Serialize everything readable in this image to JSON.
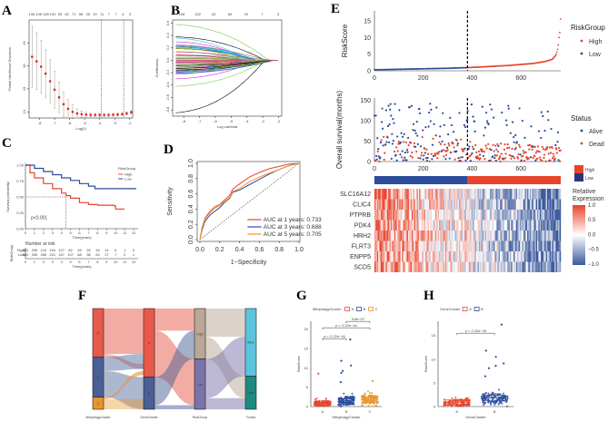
{
  "panels": {
    "A": "A",
    "B": "B",
    "C": "C",
    "D": "D",
    "E": "E",
    "F": "F",
    "G": "G",
    "H": "H"
  },
  "chart_data": [
    {
      "id": "A",
      "type": "line",
      "title": "",
      "xlabel": "Log(λ)",
      "ylabel": "Partial Likelihood Deviance",
      "xlim": [
        -8.7,
        -1.8
      ],
      "ylim": [
        9.2,
        22
      ],
      "x_ticks": [
        -8,
        -7,
        -6,
        -5,
        -4,
        -3,
        -2
      ],
      "y_ticks": [
        10,
        13,
        16,
        19
      ],
      "top_ticks": [
        "108",
        "108",
        "108",
        "100",
        "95",
        "82",
        "71",
        "58",
        "35",
        "19",
        "11",
        "7",
        "7",
        "4",
        "3"
      ],
      "vlines": [
        -3.9,
        -2.4
      ],
      "series": [
        {
          "name": "deviance",
          "color": "#e8201c",
          "x": [
            -8.5,
            -8.2,
            -7.9,
            -7.6,
            -7.3,
            -7.0,
            -6.7,
            -6.4,
            -6.1,
            -5.8,
            -5.5,
            -5.2,
            -4.9,
            -4.6,
            -4.3,
            -4.0,
            -3.7,
            -3.4,
            -3.1,
            -2.8,
            -2.5,
            -2.2,
            -1.9
          ],
          "y": [
            17.2,
            16.6,
            15.9,
            15.0,
            14.0,
            12.9,
            11.9,
            11.0,
            10.4,
            10.0,
            9.8,
            9.7,
            9.65,
            9.6,
            9.6,
            9.6,
            9.6,
            9.6,
            9.62,
            9.65,
            9.7,
            9.8,
            9.95
          ],
          "err": [
            4.0,
            3.7,
            3.4,
            3.1,
            2.8,
            2.4,
            2.0,
            1.6,
            1.2,
            0.9,
            0.6,
            0.4,
            0.3,
            0.25,
            0.2,
            0.2,
            0.2,
            0.2,
            0.2,
            0.2,
            0.2,
            0.2,
            0.2
          ]
        }
      ]
    },
    {
      "id": "B",
      "type": "line",
      "title": "",
      "xlabel": "Log Lambda",
      "ylabel": "Coefficients",
      "xlim": [
        -8.7,
        -1.8
      ],
      "ylim": [
        -0.9,
        0.65
      ],
      "x_ticks": [
        -8,
        -7,
        -6,
        -5,
        -4,
        -3,
        -2
      ],
      "y_ticks": [
        -0.8,
        -0.6,
        -0.4,
        -0.2,
        0.0,
        0.2,
        0.4,
        0.6
      ],
      "top_ticks": [
        "108",
        "102",
        "82",
        "60",
        "23",
        "7",
        "3"
      ],
      "series_count": 60,
      "series": [
        {
          "name": "path-1",
          "color": "#7ccf3b",
          "start": 0.58
        },
        {
          "name": "path-2",
          "color": "#000000",
          "start": 0.38
        },
        {
          "name": "path-3",
          "color": "#22c4e0",
          "start": 0.36
        },
        {
          "name": "path-4",
          "color": "#d62ad6",
          "start": 0.3
        },
        {
          "name": "path-5",
          "color": "#e33a7a",
          "start": 0.25
        },
        {
          "name": "path-6",
          "color": "#3aa84b",
          "start": 0.2
        },
        {
          "name": "path-7",
          "color": "#2b55e0",
          "start": -0.18
        },
        {
          "name": "path-8",
          "color": "#d62ad6",
          "start": -0.3
        },
        {
          "name": "path-9",
          "color": "#7ccf3b",
          "start": -0.42
        },
        {
          "name": "path-10",
          "color": "#000000",
          "start": -0.85
        }
      ]
    },
    {
      "id": "C",
      "type": "line",
      "title": "",
      "xlabel": "Time(years)",
      "ylabel": "Survival probability",
      "xlim": [
        0,
        12.5
      ],
      "ylim": [
        0,
        1
      ],
      "x_ticks": [
        0,
        1,
        2,
        3,
        4,
        5,
        6,
        7,
        8,
        9,
        10,
        11,
        12
      ],
      "y_ticks": [
        "0.00",
        "0.25",
        "0.50",
        "0.75",
        "1.00"
      ],
      "legend_title": "RiskGroup",
      "annotation": "p<0.001",
      "median_line": {
        "x": 4.5,
        "y": 0.5
      },
      "series": [
        {
          "name": "High",
          "color": "#e8442c",
          "x": [
            0,
            0.5,
            1,
            2,
            3,
            4,
            4.5,
            5,
            6,
            7,
            8,
            9,
            9.8,
            10,
            11
          ],
          "y": [
            1,
            0.88,
            0.8,
            0.71,
            0.63,
            0.56,
            0.52,
            0.48,
            0.41,
            0.38,
            0.37,
            0.37,
            0.36,
            0.31,
            0.31
          ]
        },
        {
          "name": "Low",
          "color": "#2c4c9c",
          "x": [
            0,
            1,
            2,
            3,
            4,
            5,
            6,
            7,
            7.7,
            8,
            9,
            10,
            11,
            12.3
          ],
          "y": [
            1,
            0.95,
            0.9,
            0.85,
            0.8,
            0.76,
            0.71,
            0.67,
            0.63,
            0.63,
            0.63,
            0.63,
            0.63,
            0.63
          ]
        }
      ],
      "risk_table": {
        "title": "Number at risk",
        "ylabel": "RiskGroup",
        "xlabel": "Time(years)",
        "rows": [
          {
            "group": "High",
            "color": "#e8442c",
            "values": [
              "381",
              "290",
              "215",
              "164",
              "127",
              "82",
              "45",
              "25",
              "16",
              "14",
              "6",
              "1",
              "0"
            ]
          },
          {
            "group": "Low",
            "color": "#2c4c9c",
            "values": [
              "382",
              "335",
              "266",
              "201",
              "157",
              "107",
              "68",
              "38",
              "25",
              "17",
              "7",
              "2",
              "1"
            ]
          }
        ]
      }
    },
    {
      "id": "D",
      "type": "line",
      "title": "",
      "xlabel": "1−Specificity",
      "ylabel": "Sensitivity",
      "xlim": [
        0,
        1
      ],
      "ylim": [
        0,
        1
      ],
      "x_ticks": [
        "0.0",
        "0.2",
        "0.4",
        "0.6",
        "0.8",
        "1.0"
      ],
      "y_ticks": [
        "0.0",
        "0.2",
        "0.4",
        "0.6",
        "0.8",
        "1.0"
      ],
      "series": [
        {
          "name": "AUC at 1 years: 0.733",
          "color": "#e8442c",
          "x": [
            0,
            0.02,
            0.05,
            0.1,
            0.15,
            0.2,
            0.25,
            0.3,
            0.33,
            0.4,
            0.5,
            0.6,
            0.7,
            0.8,
            0.9,
            1
          ],
          "y": [
            0,
            0.15,
            0.28,
            0.37,
            0.43,
            0.46,
            0.52,
            0.58,
            0.66,
            0.73,
            0.82,
            0.88,
            0.93,
            0.96,
            0.99,
            1
          ]
        },
        {
          "name": "AUC at 3 years: 0.688",
          "color": "#2c4c9c",
          "x": [
            0,
            0.02,
            0.05,
            0.1,
            0.15,
            0.2,
            0.25,
            0.3,
            0.33,
            0.4,
            0.5,
            0.6,
            0.7,
            0.8,
            0.9,
            1
          ],
          "y": [
            0,
            0.12,
            0.24,
            0.32,
            0.37,
            0.42,
            0.49,
            0.54,
            0.62,
            0.65,
            0.72,
            0.79,
            0.86,
            0.92,
            0.97,
            1
          ]
        },
        {
          "name": "AUC at 5 years: 0.705",
          "color": "#f0952a",
          "x": [
            0,
            0.02,
            0.05,
            0.1,
            0.15,
            0.2,
            0.25,
            0.3,
            0.33,
            0.4,
            0.5,
            0.6,
            0.7,
            0.8,
            0.9,
            1
          ],
          "y": [
            0,
            0.14,
            0.27,
            0.35,
            0.41,
            0.45,
            0.5,
            0.55,
            0.63,
            0.67,
            0.76,
            0.82,
            0.87,
            0.92,
            0.97,
            1
          ]
        }
      ],
      "diagonal": true,
      "legend_position": "bottom-right"
    },
    {
      "id": "E-risk",
      "type": "scatter",
      "title": "",
      "xlabel": "",
      "ylabel": "RiskScore",
      "xlim": [
        0,
        763
      ],
      "ylim": [
        0,
        18
      ],
      "x_ticks": [
        0,
        200,
        400,
        600
      ],
      "y_ticks": [
        0,
        5,
        10,
        15
      ],
      "cutoff": 381,
      "legend_title": "RiskGroup",
      "legend": [
        {
          "name": "High",
          "color": "#e8442c"
        },
        {
          "name": "Low",
          "color": "#2c4c9c"
        }
      ],
      "curve": {
        "x": [
          0,
          100,
          200,
          300,
          381,
          450,
          550,
          650,
          700,
          730,
          745,
          752,
          756,
          760,
          763
        ],
        "y": [
          0.3,
          0.45,
          0.6,
          0.75,
          0.95,
          1.2,
          1.6,
          2.2,
          2.8,
          3.5,
          5,
          7,
          10,
          12,
          17.3
        ]
      }
    },
    {
      "id": "E-survival",
      "type": "scatter",
      "title": "",
      "xlabel": "",
      "ylabel": "Overall survival(months)",
      "xlim": [
        0,
        763
      ],
      "ylim": [
        0,
        155
      ],
      "x_ticks": [
        0,
        200,
        400,
        600
      ],
      "y_ticks": [
        0,
        50,
        100,
        150
      ],
      "cutoff": 381,
      "legend_title": "Status",
      "legend": [
        {
          "name": "Alive",
          "color": "#2c4c9c"
        },
        {
          "name": "Dead",
          "color": "#e8442c"
        }
      ],
      "n_points": 763
    },
    {
      "id": "E-heatmap",
      "type": "heatmap",
      "rows": [
        "SLC16A12",
        "CLIC4",
        "PTPRB",
        "PDK4",
        "HRH2",
        "FLRT3",
        "ENPP5",
        "SCD5"
      ],
      "group_bar": [
        {
          "name": "High",
          "color": "#e8442c"
        },
        {
          "name": "Low",
          "color": "#2c4c9c"
        }
      ],
      "legend_title": "Relative Expression",
      "scale_ticks": [
        "1.0",
        "0.5",
        "0.0",
        "−0.5",
        "−1.0"
      ],
      "scale_colors": [
        "#e8442c",
        "#ffffff",
        "#3c5a9c"
      ],
      "trend": "high expression in low-risk samples (left), low in high-risk (right)"
    },
    {
      "id": "F",
      "type": "sankey",
      "axes": [
        "MitophagyCluster",
        "GeneCluster",
        "RiskGroup",
        "Fustat"
      ],
      "nodes": [
        {
          "axis": 0,
          "name": "A",
          "color": "#e8594a",
          "share": 0.48
        },
        {
          "axis": 0,
          "name": "B",
          "color": "#4a5f96",
          "share": 0.4
        },
        {
          "axis": 0,
          "name": "C",
          "color": "#e8952c",
          "share": 0.12
        },
        {
          "axis": 1,
          "name": "A",
          "color": "#e8594a",
          "share": 0.68
        },
        {
          "axis": 1,
          "name": "B",
          "color": "#4a5f96",
          "share": 0.32
        },
        {
          "axis": 2,
          "name": "High",
          "color": "#b8a895",
          "share": 0.5
        },
        {
          "axis": 2,
          "name": "Low",
          "color": "#7b72a8",
          "share": 0.5
        },
        {
          "axis": 3,
          "name": "Alive",
          "color": "#5cc4dc",
          "share": 0.67
        },
        {
          "axis": 3,
          "name": "Dead",
          "color": "#1e8a80",
          "share": 0.33
        }
      ]
    },
    {
      "id": "G",
      "type": "scatter",
      "title": "",
      "xlabel": "MitophagyCluster",
      "ylabel": "RiskScore",
      "legend_title": "MitophagyCluster",
      "categories": [
        "A",
        "B",
        "C"
      ],
      "colors": [
        "#e8442c",
        "#2c4c9c",
        "#e8952c"
      ],
      "ylim": [
        0,
        22
      ],
      "y_ticks": [
        0,
        5,
        10,
        15,
        20
      ],
      "medians": [
        0.8,
        1.5,
        1.8
      ],
      "outliers": [
        [
          8.5
        ],
        [
          17.3,
          11.8,
          10.6,
          9.2,
          8.7,
          6.3
        ],
        [
          6.6
        ]
      ],
      "comparisons": [
        {
          "pair": [
            "A",
            "B"
          ],
          "label": "p = 2.22e−16"
        },
        {
          "pair": [
            "A",
            "C"
          ],
          "label": "p < 2.22e−16"
        },
        {
          "pair": [
            "B",
            "C"
          ],
          "label": "5.8e−07"
        }
      ]
    },
    {
      "id": "H",
      "type": "scatter",
      "title": "",
      "xlabel": "GeneCluster",
      "ylabel": "RiskScore",
      "legend_title": "GeneCluster",
      "categories": [
        "A",
        "B"
      ],
      "colors": [
        "#e8442c",
        "#2c4c9c"
      ],
      "ylim": [
        0,
        18
      ],
      "y_ticks": [
        0,
        5,
        10,
        15
      ],
      "medians": [
        0.8,
        1.8
      ],
      "outliers": [
        [],
        [
          17.3,
          11.8,
          10.5,
          9.1,
          8.6,
          8.1,
          6.4
        ]
      ],
      "comparisons": [
        {
          "pair": [
            "A",
            "B"
          ],
          "label": "p < 2.22e−16"
        }
      ]
    }
  ]
}
